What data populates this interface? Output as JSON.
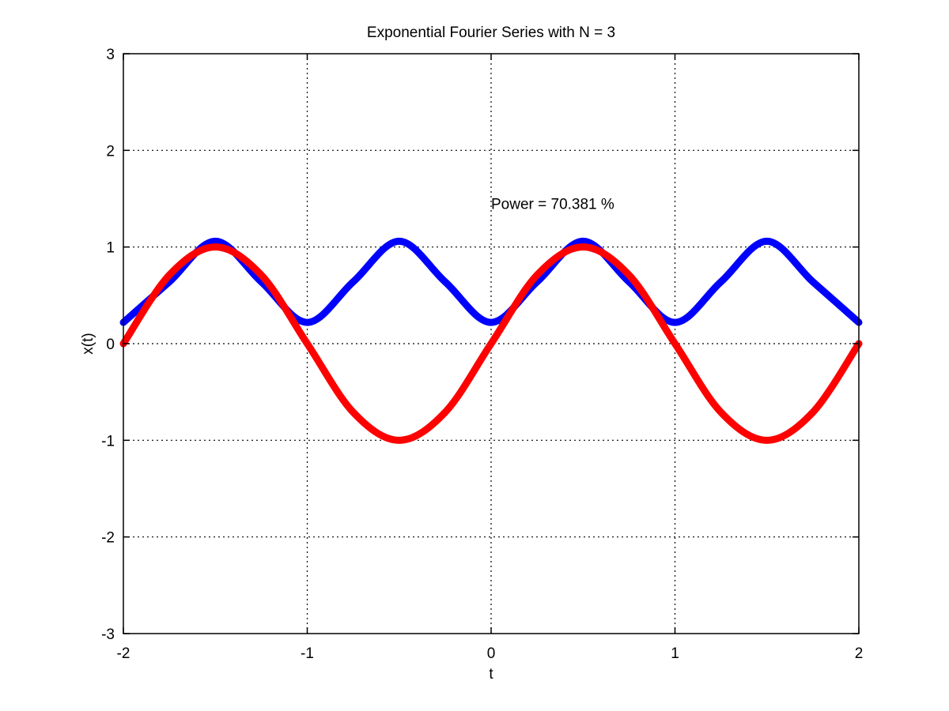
{
  "chart_data": {
    "type": "line",
    "title": "Exponential Fourier Series with N = 3",
    "xlabel": "t",
    "ylabel": "x(t)",
    "xlim": [
      -2,
      2
    ],
    "ylim": [
      -3,
      3
    ],
    "grid": true,
    "x_ticks": [
      -2,
      -1,
      0,
      1,
      2
    ],
    "y_ticks": [
      -3,
      -2,
      -1,
      0,
      1,
      2,
      3
    ],
    "annotation": {
      "text": "Power =  70.381 %",
      "x": 0.0,
      "y": 1.45
    },
    "x": [
      -2.0,
      -1.75,
      -1.5,
      -1.25,
      -1.0,
      -0.75,
      -0.5,
      -0.25,
      0.0,
      0.25,
      0.5,
      0.75,
      1.0,
      1.25,
      1.5,
      1.75,
      2.0
    ],
    "series": [
      {
        "color": "#0000ff",
        "values": [
          0.22,
          0.64,
          1.06,
          0.64,
          0.22,
          0.64,
          1.06,
          0.64,
          0.22,
          0.64,
          1.06,
          0.64,
          0.22,
          0.64,
          1.06,
          0.64,
          0.22
        ]
      },
      {
        "color": "#ff0000",
        "values": [
          0.0,
          0.71,
          1.0,
          0.71,
          0.0,
          -0.71,
          -1.0,
          -0.71,
          0.0,
          0.71,
          1.0,
          0.71,
          0.0,
          -0.71,
          -1.0,
          -0.71,
          0.0
        ]
      }
    ]
  }
}
